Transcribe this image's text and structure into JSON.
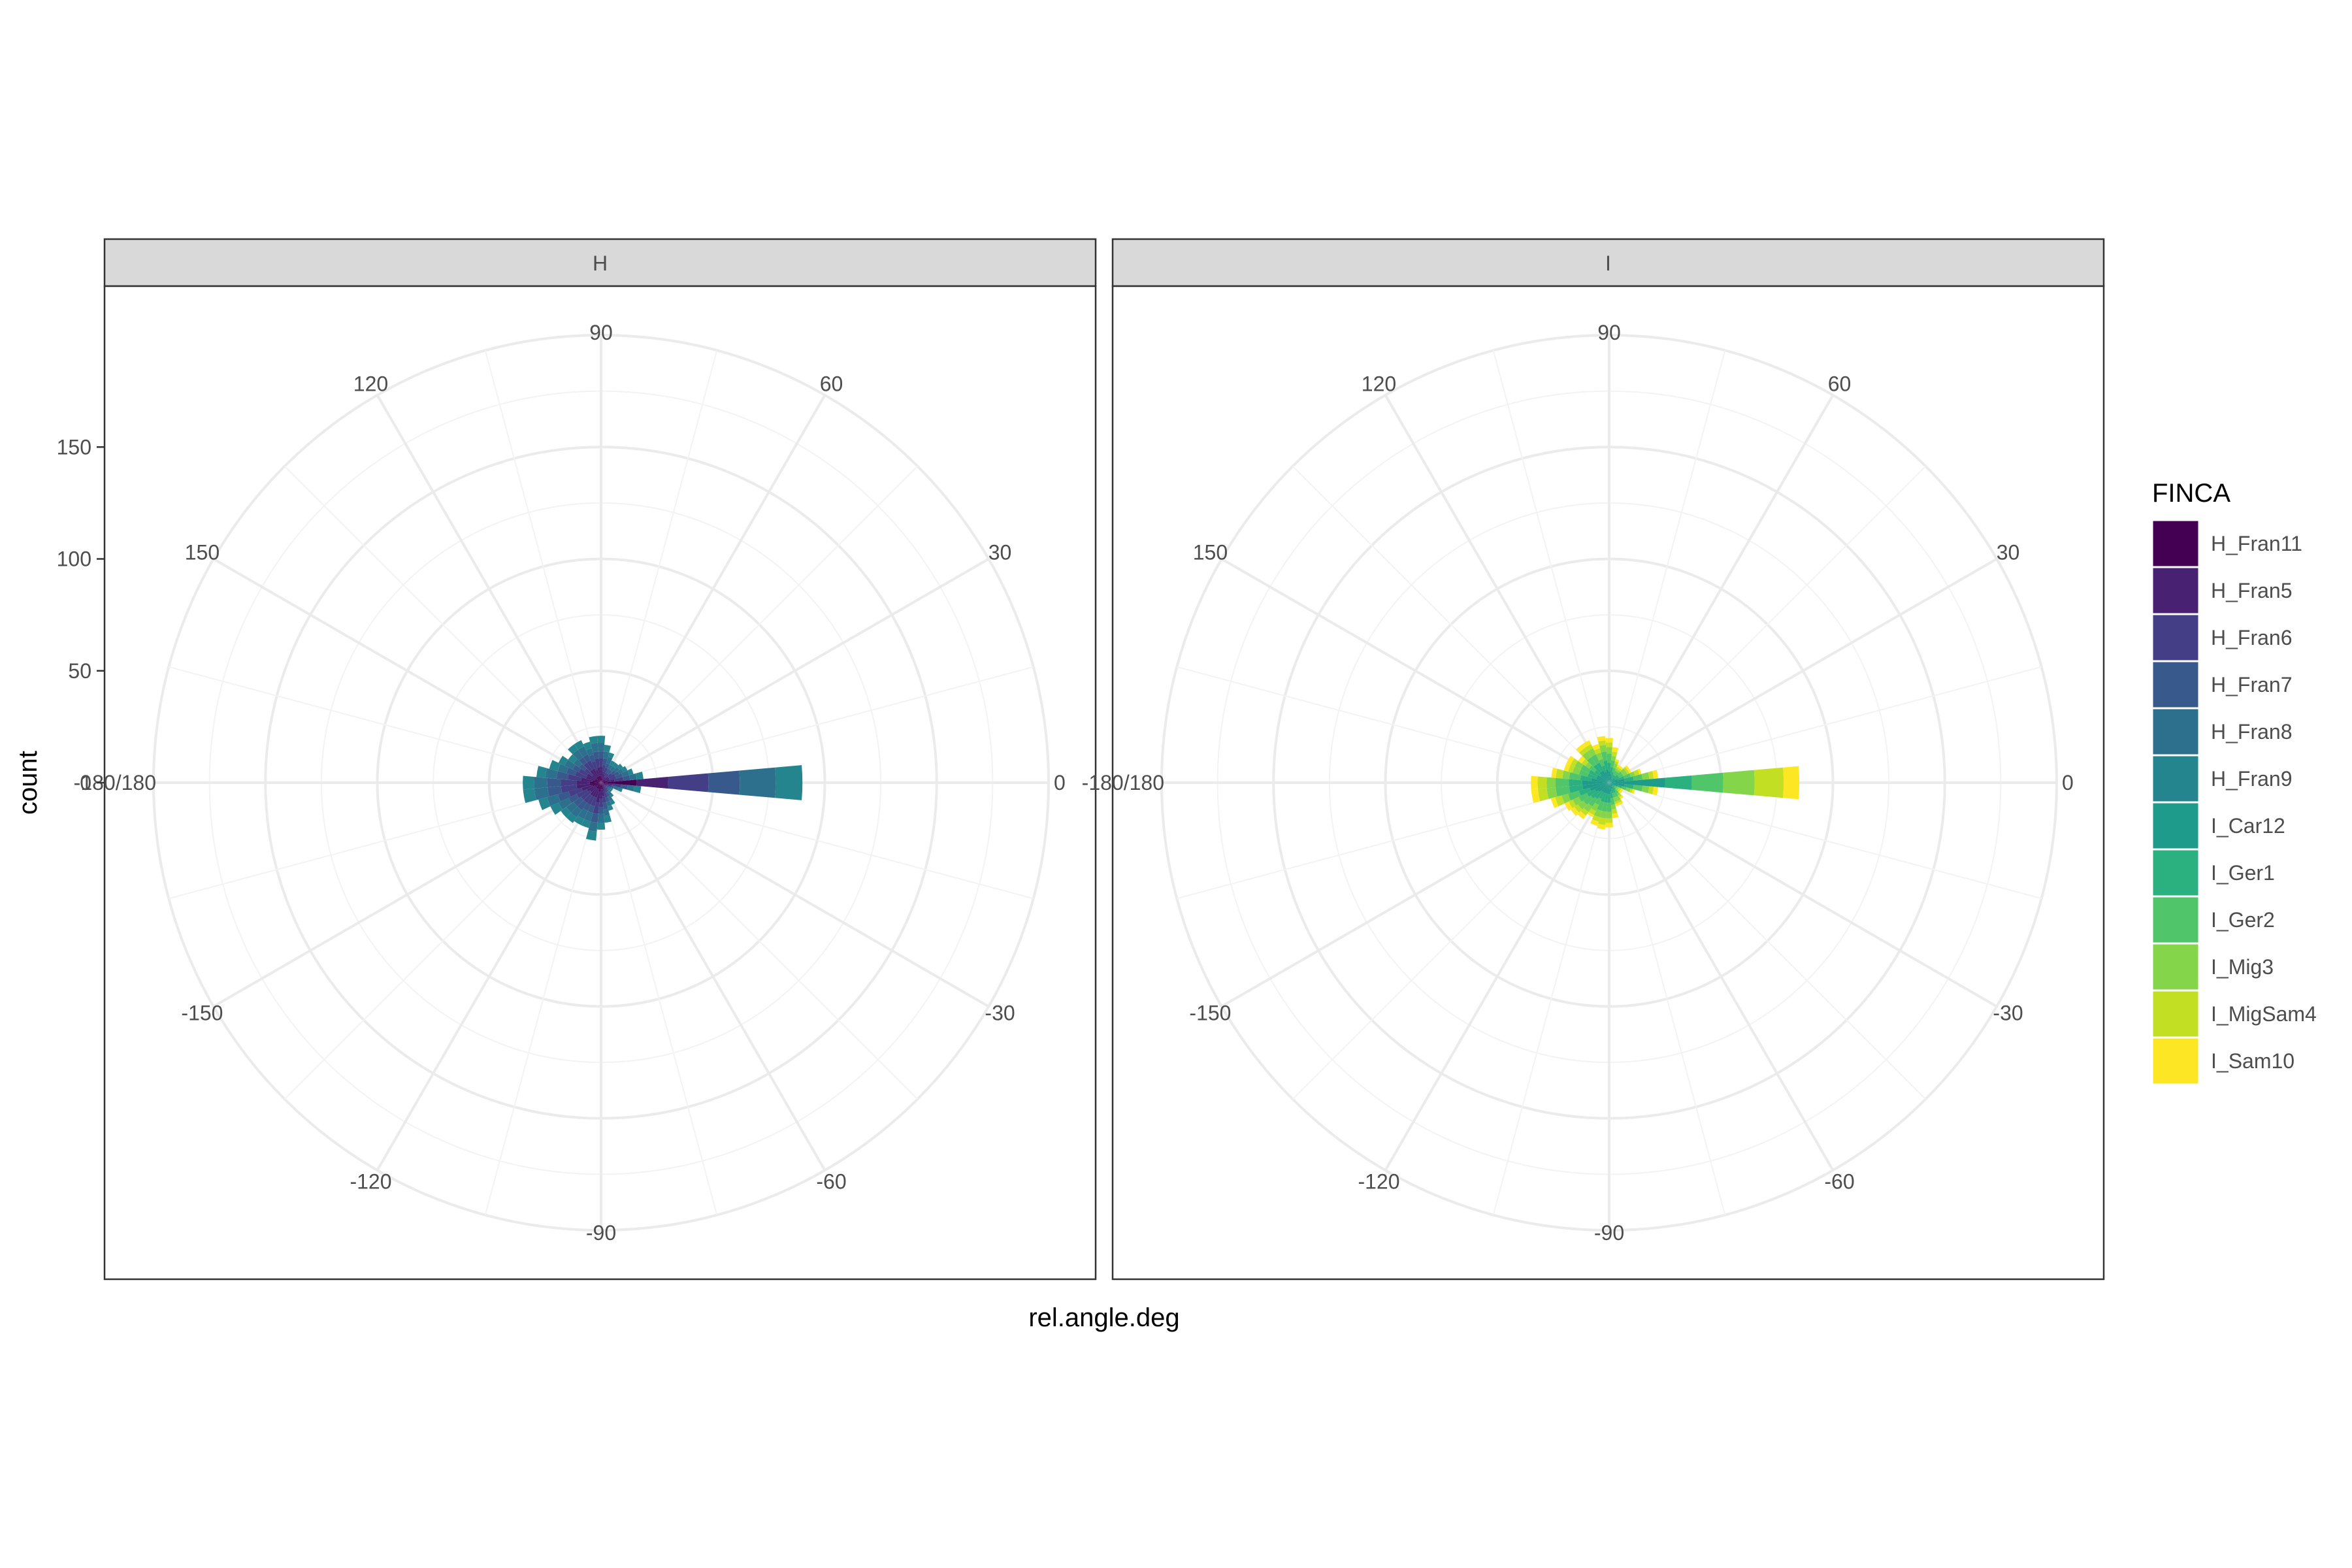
{
  "chart_data": {
    "type": "bar",
    "coord": "polar",
    "xlabel": "rel.angle.deg",
    "ylabel": "count",
    "theta_ticks": [
      "0",
      "30",
      "60",
      "90",
      "120",
      "150",
      "-180/180",
      "-150",
      "-120",
      "-90",
      "-60",
      "-30"
    ],
    "theta_tick_degrees": [
      0,
      30,
      60,
      90,
      120,
      150,
      180,
      -150,
      -120,
      -90,
      -60,
      -30
    ],
    "r_ticks": [
      "0",
      "50",
      "100",
      "150"
    ],
    "r_tick_values": [
      0,
      50,
      100,
      150
    ],
    "rlim": [
      0,
      200
    ],
    "bin_width_deg": 10,
    "bin_centers_deg": [
      -170,
      -160,
      -150,
      -140,
      -130,
      -120,
      -110,
      -100,
      -90,
      -80,
      -70,
      -60,
      -50,
      -40,
      -30,
      -20,
      -10,
      0,
      10,
      20,
      30,
      40,
      50,
      60,
      70,
      80,
      90,
      100,
      110,
      120,
      130,
      140,
      150,
      160,
      170,
      180
    ],
    "grid": true,
    "legend": {
      "title": "FINCA",
      "position": "right",
      "entries": [
        {
          "label": "H_Fran11",
          "color": "#440154"
        },
        {
          "label": "H_Fran5",
          "color": "#482173"
        },
        {
          "label": "H_Fran6",
          "color": "#433E85"
        },
        {
          "label": "H_Fran7",
          "color": "#38598C"
        },
        {
          "label": "H_Fran8",
          "color": "#2D708E"
        },
        {
          "label": "H_Fran9",
          "color": "#25858E"
        },
        {
          "label": "I_Car12",
          "color": "#1E9B8A"
        },
        {
          "label": "I_Ger1",
          "color": "#2BB07F"
        },
        {
          "label": "I_Ger2",
          "color": "#51C56A"
        },
        {
          "label": "I_Mig3",
          "color": "#85D54A"
        },
        {
          "label": "I_MigSam4",
          "color": "#C2DF23"
        },
        {
          "label": "I_Sam10",
          "color": "#FDE725"
        }
      ]
    },
    "panels": [
      {
        "title": "H",
        "series": [
          {
            "name": "H_Fran11",
            "values": [
              5,
              4,
              3,
              2,
              3,
              3,
              3,
              4,
              3,
              3,
              2,
              1,
              1,
              1,
              1,
              1,
              2,
              16,
              3,
              2,
              2,
              2,
              1,
              1,
              2,
              2,
              3,
              3,
              3,
              3,
              3,
              2,
              3,
              3,
              4,
              5
            ]
          },
          {
            "name": "H_Fran5",
            "values": [
              6,
              5,
              4,
              4,
              4,
              4,
              4,
              5,
              4,
              3,
              2,
              2,
              1,
              1,
              1,
              2,
              3,
              14,
              3,
              2,
              2,
              2,
              2,
              2,
              2,
              3,
              4,
              4,
              3,
              4,
              4,
              3,
              4,
              4,
              5,
              6
            ]
          },
          {
            "name": "H_Fran6",
            "values": [
              7,
              6,
              5,
              5,
              4,
              4,
              4,
              5,
              4,
              3,
              3,
              2,
              2,
              1,
              1,
              2,
              4,
              18,
              4,
              3,
              3,
              2,
              2,
              2,
              3,
              3,
              4,
              4,
              4,
              4,
              4,
              4,
              4,
              5,
              6,
              7
            ]
          },
          {
            "name": "H_Fran7",
            "values": [
              6,
              5,
              4,
              4,
              4,
              3,
              3,
              4,
              3,
              3,
              2,
              2,
              1,
              1,
              1,
              1,
              3,
              14,
              3,
              3,
              2,
              2,
              2,
              2,
              2,
              3,
              3,
              3,
              3,
              3,
              3,
              3,
              3,
              4,
              5,
              6
            ]
          },
          {
            "name": "H_Fran8",
            "values": [
              6,
              5,
              5,
              4,
              4,
              4,
              4,
              4,
              4,
              3,
              2,
              2,
              2,
              1,
              1,
              2,
              3,
              16,
              3,
              3,
              2,
              2,
              2,
              2,
              3,
              3,
              4,
              4,
              3,
              4,
              4,
              3,
              4,
              4,
              5,
              6
            ]
          },
          {
            "name": "H_Fran9",
            "values": [
              5,
              4,
              4,
              3,
              3,
              3,
              3,
              4,
              3,
              3,
              2,
              2,
              1,
              1,
              1,
              2,
              3,
              12,
              3,
              2,
              2,
              2,
              2,
              2,
              2,
              3,
              3,
              3,
              3,
              3,
              3,
              3,
              3,
              4,
              4,
              5
            ]
          }
        ]
      },
      {
        "title": "I",
        "series": [
          {
            "name": "I_Car12",
            "values": [
              12,
              9,
              7,
              6,
              5,
              5,
              5,
              5,
              5,
              4,
              3,
              3,
              2,
              2,
              2,
              4,
              7,
              25,
              7,
              4,
              3,
              3,
              2,
              2,
              3,
              4,
              5,
              6,
              5,
              6,
              6,
              5,
              6,
              6,
              8,
              12
            ]
          },
          {
            "name": "I_Ger1",
            "values": [
              6,
              5,
              4,
              4,
              4,
              3,
              4,
              4,
              4,
              3,
              2,
              2,
              2,
              1,
              1,
              2,
              4,
              12,
              4,
              3,
              2,
              2,
              2,
              2,
              2,
              3,
              4,
              4,
              3,
              4,
              4,
              3,
              4,
              4,
              5,
              6
            ]
          },
          {
            "name": "I_Ger2",
            "values": [
              6,
              5,
              4,
              4,
              4,
              3,
              4,
              4,
              4,
              3,
              2,
              2,
              2,
              1,
              1,
              2,
              4,
              14,
              4,
              3,
              2,
              2,
              2,
              2,
              2,
              3,
              4,
              4,
              3,
              4,
              4,
              3,
              4,
              4,
              5,
              6
            ]
          },
          {
            "name": "I_Mig3",
            "values": [
              4,
              3,
              3,
              3,
              3,
              3,
              3,
              3,
              3,
              2,
              2,
              2,
              1,
              1,
              1,
              2,
              3,
              14,
              3,
              2,
              2,
              2,
              1,
              1,
              2,
              2,
              3,
              3,
              3,
              3,
              3,
              2,
              3,
              3,
              3,
              4
            ]
          },
          {
            "name": "I_MigSam4",
            "values": [
              4,
              3,
              2,
              2,
              2,
              2,
              2,
              3,
              2,
              2,
              1,
              1,
              1,
              1,
              1,
              1,
              2,
              13,
              2,
              2,
              1,
              1,
              1,
              1,
              1,
              2,
              2,
              2,
              2,
              2,
              2,
              2,
              2,
              2,
              3,
              4
            ]
          },
          {
            "name": "I_Sam10",
            "values": [
              3,
              2,
              2,
              2,
              2,
              1,
              2,
              2,
              2,
              2,
              1,
              1,
              1,
              1,
              1,
              1,
              2,
              7,
              2,
              1,
              1,
              1,
              1,
              1,
              1,
              2,
              2,
              2,
              2,
              2,
              2,
              2,
              2,
              2,
              2,
              3
            ]
          }
        ]
      }
    ]
  }
}
